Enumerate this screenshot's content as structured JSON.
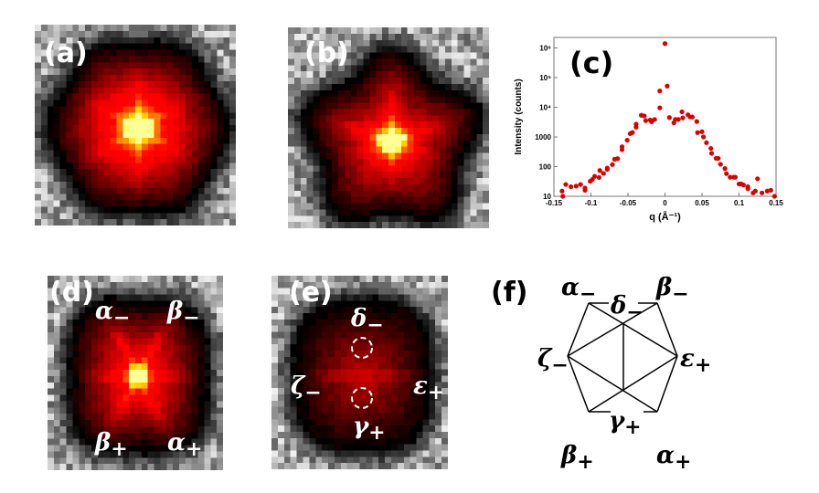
{
  "panels": {
    "a": {
      "label": "(a)"
    },
    "b": {
      "label": "(b)"
    },
    "c": {
      "label": "(c)"
    },
    "d": {
      "label": "(d)",
      "annotations": [
        {
          "sym": "α",
          "sub": "−"
        },
        {
          "sym": "β",
          "sub": "−"
        },
        {
          "sym": "β",
          "sub": "+"
        },
        {
          "sym": "α",
          "sub": "+"
        }
      ]
    },
    "e": {
      "label": "(e)",
      "annotations": [
        {
          "sym": "δ",
          "sub": "−"
        },
        {
          "sym": "ζ",
          "sub": "−"
        },
        {
          "sym": "ε",
          "sub": "+"
        },
        {
          "sym": "γ",
          "sub": "+"
        }
      ]
    },
    "f": {
      "label": "(f)",
      "annotations": [
        {
          "sym": "α",
          "sub": "−"
        },
        {
          "sym": "β",
          "sub": "−"
        },
        {
          "sym": "δ",
          "sub": "−"
        },
        {
          "sym": "ζ",
          "sub": "−"
        },
        {
          "sym": "ε",
          "sub": "+"
        },
        {
          "sym": "γ",
          "sub": "+"
        },
        {
          "sym": "β",
          "sub": "+"
        },
        {
          "sym": "α",
          "sub": "+"
        }
      ]
    }
  },
  "chart_data": {
    "type": "scatter",
    "xlabel": "q (Å⁻¹)",
    "ylabel": "Intensity (counts)",
    "xlim": [
      -0.15,
      0.15
    ],
    "ylim": [
      10,
      3000000
    ],
    "yscale": "log",
    "xticks": [
      "-0.15",
      "-0.1",
      "-0.05",
      "0",
      "0.05",
      "0.1",
      "0.15"
    ],
    "xtick_values": [
      -0.15,
      -0.1,
      -0.05,
      0,
      0.05,
      0.1,
      0.15
    ],
    "yticks": [
      "10",
      "100",
      "1000",
      "10⁴",
      "10⁵",
      "10⁶"
    ],
    "ytick_values": [
      10,
      100,
      1000,
      10000,
      100000,
      1000000
    ],
    "marker_color": "#dd0000",
    "points": [
      [
        -0.139,
        15
      ],
      [
        -0.138,
        10
      ],
      [
        -0.134,
        25
      ],
      [
        -0.127,
        21
      ],
      [
        -0.12,
        22
      ],
      [
        -0.114,
        25
      ],
      [
        -0.108,
        19
      ],
      [
        -0.108,
        16
      ],
      [
        -0.101,
        32
      ],
      [
        -0.098,
        37
      ],
      [
        -0.095,
        47
      ],
      [
        -0.089,
        43
      ],
      [
        -0.088,
        74
      ],
      [
        -0.083,
        59
      ],
      [
        -0.078,
        89
      ],
      [
        -0.078,
        81
      ],
      [
        -0.071,
        117
      ],
      [
        -0.068,
        178
      ],
      [
        -0.064,
        186
      ],
      [
        -0.058,
        372
      ],
      [
        -0.058,
        467
      ],
      [
        -0.051,
        776
      ],
      [
        -0.047,
        1290
      ],
      [
        -0.044,
        1410
      ],
      [
        -0.039,
        2140
      ],
      [
        -0.039,
        2690
      ],
      [
        -0.032,
        5370
      ],
      [
        -0.028,
        5130
      ],
      [
        -0.026,
        3550
      ],
      [
        -0.02,
        3720
      ],
      [
        -0.018,
        3240
      ],
      [
        -0.014,
        3890
      ],
      [
        -0.007,
        9550
      ],
      [
        -0.007,
        35500
      ],
      [
        0.0,
        1400000
      ],
      [
        0.003,
        52000
      ],
      [
        0.006,
        4500
      ],
      [
        0.012,
        3000
      ],
      [
        0.014,
        3900
      ],
      [
        0.018,
        3900
      ],
      [
        0.023,
        7000
      ],
      [
        0.024,
        4400
      ],
      [
        0.031,
        5600
      ],
      [
        0.034,
        4700
      ],
      [
        0.037,
        4700
      ],
      [
        0.043,
        3300
      ],
      [
        0.044,
        1400
      ],
      [
        0.05,
        1500
      ],
      [
        0.052,
        1000
      ],
      [
        0.056,
        640
      ],
      [
        0.062,
        410
      ],
      [
        0.063,
        280
      ],
      [
        0.069,
        190
      ],
      [
        0.072,
        190
      ],
      [
        0.075,
        120
      ],
      [
        0.081,
        86
      ],
      [
        0.083,
        58
      ],
      [
        0.088,
        44
      ],
      [
        0.093,
        44
      ],
      [
        0.095,
        44
      ],
      [
        0.1,
        26
      ],
      [
        0.103,
        26
      ],
      [
        0.106,
        24
      ],
      [
        0.112,
        21
      ],
      [
        0.112,
        18
      ],
      [
        0.119,
        13
      ],
      [
        0.122,
        15
      ],
      [
        0.125,
        39
      ],
      [
        0.131,
        13
      ],
      [
        0.138,
        15
      ],
      [
        0.143,
        16
      ],
      [
        0.148,
        10
      ]
    ],
    "grid": false
  }
}
